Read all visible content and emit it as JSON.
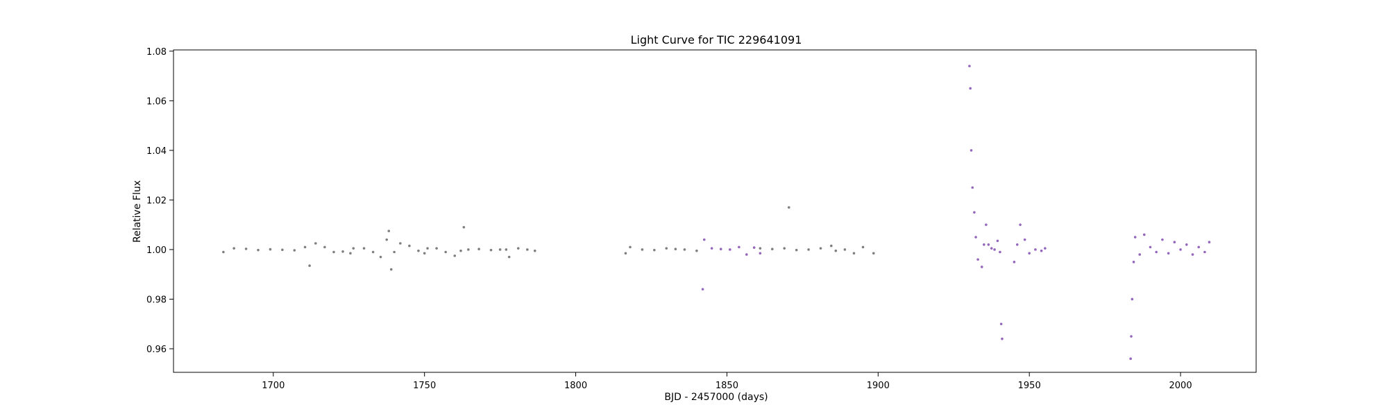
{
  "chart_data": {
    "type": "scatter",
    "title": "Light Curve for TIC 229641091",
    "xlabel": "BJD - 2457000 (days)",
    "ylabel": "Relative Flux",
    "xlim": [
      1667,
      2025
    ],
    "ylim": [
      0.9505,
      1.0805
    ],
    "x_ticks": [
      1700,
      1750,
      1800,
      1850,
      1900,
      1950,
      2000
    ],
    "x_tick_labels": [
      "1700",
      "1750",
      "1800",
      "1850",
      "1900",
      "1950",
      "2000"
    ],
    "y_ticks": [
      0.96,
      0.98,
      1.0,
      1.02,
      1.04,
      1.06,
      1.08
    ],
    "y_tick_labels": [
      "0.96",
      "0.98",
      "1.00",
      "1.02",
      "1.04",
      "1.06",
      "1.08"
    ],
    "grid": false,
    "legend": "none",
    "series": [
      {
        "color": "#7f7f7f",
        "points": [
          [
            1683.5,
            0.999
          ],
          [
            1687,
            1.0005
          ],
          [
            1691,
            1.0003
          ],
          [
            1695,
            0.9998
          ],
          [
            1699,
            1.0001
          ],
          [
            1703,
            0.9999
          ],
          [
            1707,
            0.9997
          ],
          [
            1710.5,
            1.001
          ],
          [
            1712,
            0.9935
          ],
          [
            1714,
            1.0025
          ],
          [
            1717,
            1.001
          ],
          [
            1720,
            0.999
          ],
          [
            1723,
            0.9992
          ],
          [
            1725.5,
            0.9985
          ],
          [
            1726.5,
            1.0005
          ],
          [
            1730,
            1.0005
          ],
          [
            1733,
            0.999
          ],
          [
            1735.5,
            0.997
          ],
          [
            1737.5,
            1.004
          ],
          [
            1738.2,
            1.0075
          ],
          [
            1739,
            0.992
          ],
          [
            1740,
            0.999
          ],
          [
            1742,
            1.0025
          ],
          [
            1745,
            1.0015
          ],
          [
            1748,
            0.9995
          ],
          [
            1750,
            0.9985
          ],
          [
            1751,
            1.0005
          ],
          [
            1754,
            1.0005
          ],
          [
            1757,
            0.999
          ],
          [
            1760,
            0.9975
          ],
          [
            1762,
            0.9995
          ],
          [
            1763,
            1.009
          ],
          [
            1764.5,
            1.0
          ],
          [
            1768,
            1.0002
          ],
          [
            1772,
            0.9998
          ],
          [
            1775,
            1.0
          ],
          [
            1777,
            1.0
          ],
          [
            1778,
            0.997
          ],
          [
            1781,
            1.0005
          ],
          [
            1784,
            1.0
          ],
          [
            1786.5,
            0.9995
          ],
          [
            1816.5,
            0.9985
          ],
          [
            1818,
            1.001
          ],
          [
            1822,
            1.0
          ],
          [
            1826,
            0.9998
          ],
          [
            1830,
            1.0005
          ],
          [
            1833,
            1.0002
          ],
          [
            1836,
            1.0
          ],
          [
            1840,
            0.9995
          ],
          [
            1861,
            1.0005
          ],
          [
            1865,
            1.0002
          ],
          [
            1869,
            1.0005
          ],
          [
            1870.5,
            1.017
          ],
          [
            1873,
            0.9998
          ],
          [
            1877,
            1.0
          ],
          [
            1881,
            1.0005
          ],
          [
            1884.5,
            1.0015
          ],
          [
            1886,
            0.9995
          ],
          [
            1889,
            1.0
          ],
          [
            1892,
            0.9985
          ],
          [
            1895,
            1.001
          ],
          [
            1898.5,
            0.9985
          ]
        ]
      },
      {
        "color": "#9467bd",
        "points": [
          [
            1842,
            0.984
          ],
          [
            1842.5,
            1.004
          ],
          [
            1845,
            1.0005
          ],
          [
            1848,
            1.0002
          ],
          [
            1851,
            1.0
          ],
          [
            1854,
            1.001
          ],
          [
            1856.5,
            0.998
          ],
          [
            1859,
            1.0008
          ],
          [
            1861,
            0.9985
          ],
          [
            1930.2,
            1.074
          ],
          [
            1930.5,
            1.065
          ],
          [
            1930.8,
            1.04
          ],
          [
            1931.2,
            1.025
          ],
          [
            1931.8,
            1.015
          ],
          [
            1932.3,
            1.005
          ],
          [
            1933,
            0.996
          ],
          [
            1934.3,
            0.993
          ],
          [
            1935,
            1.002
          ],
          [
            1935.7,
            1.01
          ],
          [
            1936.5,
            1.002
          ],
          [
            1937.5,
            1.0005
          ],
          [
            1938.5,
            1.0
          ],
          [
            1939.5,
            1.0035
          ],
          [
            1940.3,
            0.999
          ],
          [
            1940.7,
            0.97
          ],
          [
            1941,
            0.964
          ],
          [
            1945,
            0.995
          ],
          [
            1946,
            1.002
          ],
          [
            1947,
            1.01
          ],
          [
            1948.5,
            1.004
          ],
          [
            1950,
            0.9985
          ],
          [
            1952,
            1.0
          ],
          [
            1954,
            0.9995
          ],
          [
            1955.2,
            1.0005
          ],
          [
            1983.5,
            0.956
          ],
          [
            1983.7,
            0.965
          ],
          [
            1984,
            0.98
          ],
          [
            1984.5,
            0.995
          ],
          [
            1985,
            1.005
          ],
          [
            1986.5,
            0.998
          ],
          [
            1988,
            1.006
          ],
          [
            1990,
            1.001
          ],
          [
            1992,
            0.999
          ],
          [
            1994,
            1.004
          ],
          [
            1996,
            0.9985
          ],
          [
            1998,
            1.003
          ],
          [
            2000,
            1.0
          ],
          [
            2002,
            1.002
          ],
          [
            2004,
            0.998
          ],
          [
            2006,
            1.001
          ],
          [
            2008,
            0.999
          ],
          [
            2009.5,
            1.003
          ]
        ]
      }
    ]
  }
}
